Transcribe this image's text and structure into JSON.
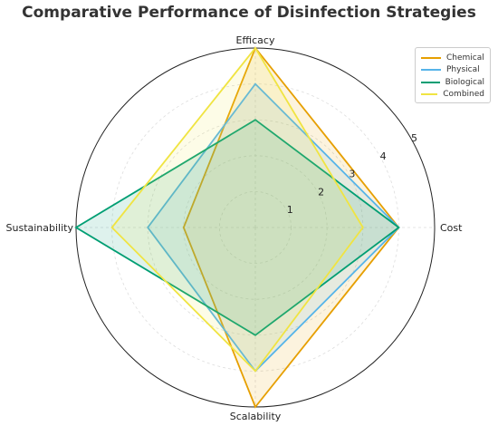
{
  "chart_data": {
    "type": "radar",
    "title": "Comparative Performance of Disinfection Strategies",
    "axes": [
      "Cost",
      "Efficacy",
      "Sustainability",
      "Scalability"
    ],
    "rlim": [
      0,
      5
    ],
    "rticks": [
      1,
      2,
      3,
      4,
      5
    ],
    "rtick_labels": [
      "1",
      "2",
      "3",
      "4",
      "5"
    ],
    "grid": true,
    "legend_position": "top-right",
    "series": [
      {
        "name": "Chemical",
        "color": "#E69F00",
        "values": [
          4,
          5,
          2,
          5
        ]
      },
      {
        "name": "Physical",
        "color": "#56B4E9",
        "values": [
          4,
          4,
          3,
          4
        ]
      },
      {
        "name": "Biological",
        "color": "#009E73",
        "values": [
          4,
          3,
          5,
          3
        ]
      },
      {
        "name": "Combined",
        "color": "#F0E442",
        "values": [
          3,
          5,
          4,
          4
        ]
      }
    ]
  }
}
